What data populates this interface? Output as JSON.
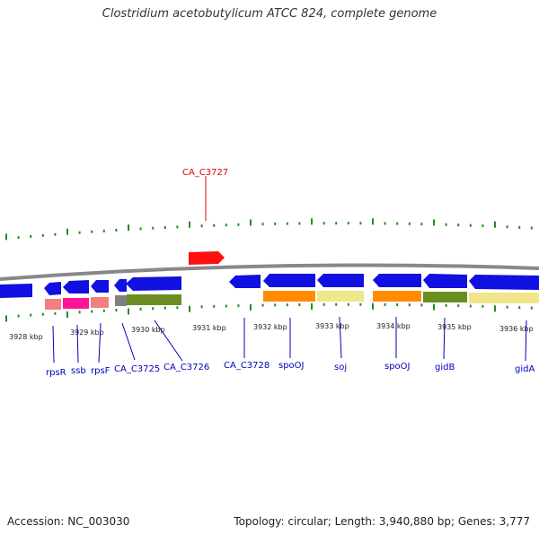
{
  "title": "Clostridium acetobutylicum ATCC 824, complete genome",
  "footer": {
    "accession": "Accession: NC_003030",
    "summary": "Topology: circular; Length: 3,940,880 bp; Genes: 3,777"
  },
  "scale": {
    "tick_labels": [
      "3928 kbp",
      "3929 kbp",
      "3930 kbp",
      "3931 kbp",
      "3932 kbp",
      "3933 kbp",
      "3934 kbp",
      "3935 kbp",
      "3936 kbp"
    ]
  },
  "gene_labels": [
    {
      "text": "CA_C3727",
      "color": "#e00000"
    },
    {
      "text": "rpsR",
      "color": "#0000bb"
    },
    {
      "text": "ssb",
      "color": "#0000bb"
    },
    {
      "text": "rpsF",
      "color": "#0000bb"
    },
    {
      "text": "CA_C3725",
      "color": "#0000bb"
    },
    {
      "text": "CA_C3726",
      "color": "#0000bb"
    },
    {
      "text": "CA_C3728",
      "color": "#0000bb"
    },
    {
      "text": "spoOJ",
      "color": "#0000bb"
    },
    {
      "text": "soj",
      "color": "#0000bb"
    },
    {
      "text": "spoOJ",
      "color": "#0000bb"
    },
    {
      "text": "gidB",
      "color": "#0000bb"
    },
    {
      "text": "gidA",
      "color": "#0000bb"
    }
  ],
  "colors": {
    "forward_gene": "#ff1010",
    "reverse_gene": "#1010e0",
    "backbone": "#888888",
    "tick": "#228b22",
    "cog_pink": "#f08080",
    "cog_magenta": "#ff1493",
    "cog_olive": "#6b8e23",
    "cog_orange": "#ff8c00",
    "cog_khaki": "#f0e68c",
    "cog_gray": "#808080"
  }
}
